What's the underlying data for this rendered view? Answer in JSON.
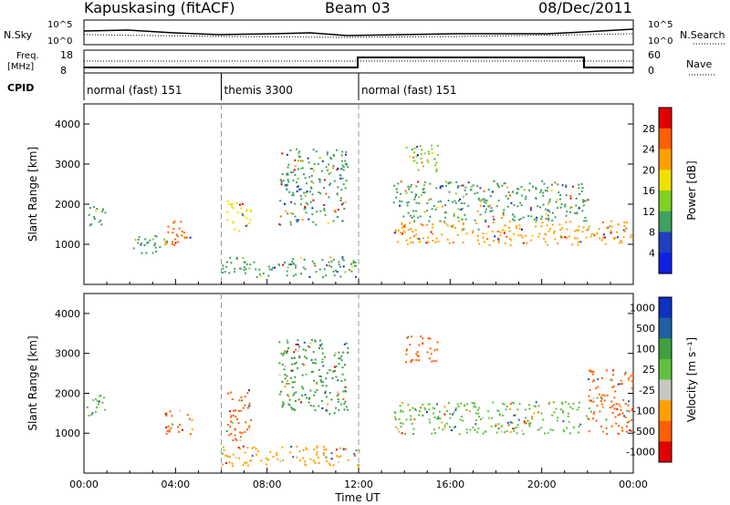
{
  "header": {
    "station": "Kapuskasing (fitACF)",
    "beam": "Beam 03",
    "date": "08/Dec/2011"
  },
  "strips": {
    "nsky_label": "N.Sky",
    "nsky_ticks": [
      "10^5",
      "10^0"
    ],
    "nsearch_label": "N.Search",
    "nsearch_ticks": [
      "10^5",
      "10^0"
    ],
    "freq_label": "Freq.",
    "freq_unit": "[MHz]",
    "freq_ticks": [
      "18",
      "8"
    ],
    "nave_label": "Nave",
    "nave_ticks": [
      "60",
      "0"
    ],
    "cpid_label": "CPID",
    "cpid_segments": [
      {
        "label": "normal (fast) 151",
        "start_h": 0,
        "end_h": 6
      },
      {
        "label": "themis 3300",
        "start_h": 6,
        "end_h": 12
      },
      {
        "label": "normal (fast) 151",
        "start_h": 12,
        "end_h": 24
      }
    ]
  },
  "chart_data": [
    {
      "type": "heatmap",
      "name": "Power",
      "ylabel": "Slant Range [km]",
      "xlim_hours": [
        0,
        24
      ],
      "ylim_km": [
        0,
        4500
      ],
      "yticks": [
        "4000",
        "3000",
        "2000",
        "1000"
      ],
      "colorbar": {
        "label": "Power [dB]",
        "ticks": [
          "28",
          "24",
          "20",
          "16",
          "12",
          "8",
          "4"
        ],
        "colors": [
          "#e00000",
          "#ff6000",
          "#ffa000",
          "#f0e000",
          "#80d020",
          "#40a060",
          "#2040c0",
          "#1020e0"
        ]
      },
      "regions": [
        {
          "t0": 0.1,
          "t1": 0.9,
          "r0": 1400,
          "r1": 2000,
          "level": 8
        },
        {
          "t0": 2.0,
          "t1": 3.6,
          "r0": 800,
          "r1": 1300,
          "level": 8
        },
        {
          "t0": 3.5,
          "t1": 4.7,
          "r0": 1000,
          "r1": 1600,
          "level": 24
        },
        {
          "t0": 6.2,
          "t1": 7.3,
          "r0": 1300,
          "r1": 2100,
          "level": 16
        },
        {
          "t0": 8.5,
          "t1": 11.5,
          "r0": 1500,
          "r1": 3400,
          "level": 8
        },
        {
          "t0": 13.5,
          "t1": 24.0,
          "r0": 1000,
          "r1": 1600,
          "level": 20
        },
        {
          "t0": 13.5,
          "t1": 22.0,
          "r0": 1600,
          "r1": 2600,
          "level": 8
        },
        {
          "t0": 14.0,
          "t1": 15.5,
          "r0": 2800,
          "r1": 3500,
          "level": 12
        },
        {
          "t0": 6.0,
          "t1": 12.0,
          "r0": 200,
          "r1": 700,
          "level": 10
        }
      ]
    },
    {
      "type": "heatmap",
      "name": "Velocity",
      "ylabel": "Slant Range [km]",
      "xlim_hours": [
        0,
        24
      ],
      "ylim_km": [
        0,
        4500
      ],
      "yticks": [
        "4000",
        "3000",
        "2000",
        "1000"
      ],
      "xticks": [
        "00:00",
        "04:00",
        "08:00",
        "12:00",
        "16:00",
        "20:00",
        "00:00"
      ],
      "xlabel": "Time UT",
      "colorbar": {
        "label": "Velocity [m s⁻¹]",
        "ticks": [
          "1000",
          "500",
          "100",
          "25",
          "-25",
          "-100",
          "-500",
          "-1000"
        ],
        "colors": [
          "#1030c0",
          "#2060a0",
          "#40a040",
          "#60c040",
          "#c8c8c0",
          "#ffa000",
          "#ff6000",
          "#e00000"
        ]
      },
      "regions": [
        {
          "t0": 0.1,
          "t1": 0.9,
          "r0": 1400,
          "r1": 2000,
          "level": 25
        },
        {
          "t0": 3.5,
          "t1": 4.7,
          "r0": 1000,
          "r1": 1600,
          "level": -500
        },
        {
          "t0": 6.2,
          "t1": 7.3,
          "r0": 800,
          "r1": 2100,
          "level": -500
        },
        {
          "t0": 8.5,
          "t1": 11.5,
          "r0": 1500,
          "r1": 3400,
          "level": 100
        },
        {
          "t0": 13.5,
          "t1": 22.0,
          "r0": 1000,
          "r1": 1800,
          "level": 25
        },
        {
          "t0": 14.0,
          "t1": 15.5,
          "r0": 2800,
          "r1": 3500,
          "level": -500
        },
        {
          "t0": 22.0,
          "t1": 24.0,
          "r0": 1000,
          "r1": 2600,
          "level": -500
        },
        {
          "t0": 6.0,
          "t1": 12.0,
          "r0": 200,
          "r1": 700,
          "level": -100
        }
      ]
    }
  ]
}
